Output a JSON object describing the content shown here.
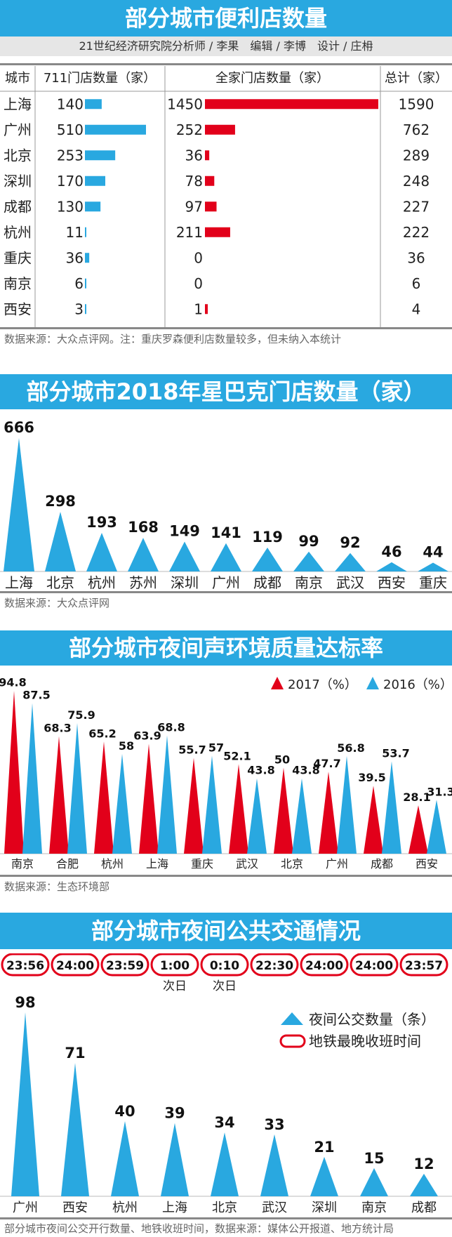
{
  "colors": {
    "blue": "#29a8e0",
    "red": "#e2001a",
    "banner_text": "#ffffff"
  },
  "section1": {
    "title": "部分城市便利店数量",
    "byline": "21世纪经济研究院分析师 / 李果　编辑 / 李博　设计 / 庄枏",
    "headers": {
      "city": "城市",
      "c711": "711门店数量（家）",
      "family": "全家门店数量（家）",
      "total": "总计（家）"
    },
    "source": "数据来源：大众点评网。注：重庆罗森便利店数量较多，但未纳入本统计",
    "chart_data": {
      "type": "table",
      "title": "部分城市便利店数量",
      "columns": [
        "城市",
        "711门店数量（家）",
        "全家门店数量（家）",
        "总计（家）"
      ],
      "rows": [
        {
          "city": "上海",
          "s711": 140,
          "family": 1450,
          "total": 1590
        },
        {
          "city": "广州",
          "s711": 510,
          "family": 252,
          "total": 762
        },
        {
          "city": "北京",
          "s711": 253,
          "family": 36,
          "total": 289
        },
        {
          "city": "深圳",
          "s711": 170,
          "family": 78,
          "total": 248
        },
        {
          "city": "成都",
          "s711": 130,
          "family": 97,
          "total": 227
        },
        {
          "city": "杭州",
          "s711": 11,
          "family": 211,
          "total": 222
        },
        {
          "city": "重庆",
          "s711": 36,
          "family": 0,
          "total": 36
        },
        {
          "city": "南京",
          "s711": 6,
          "family": 0,
          "total": 6
        },
        {
          "city": "西安",
          "s711": 3,
          "family": 1,
          "total": 4
        }
      ],
      "s711_max": 510,
      "family_max": 1450
    }
  },
  "section2": {
    "title": "部分城市2018年星巴克门店数量（家）",
    "source": "数据来源：大众点评网",
    "chart_data": {
      "type": "bar",
      "title": "部分城市2018年星巴克门店数量（家）",
      "categories": [
        "上海",
        "北京",
        "杭州",
        "苏州",
        "深圳",
        "广州",
        "成都",
        "南京",
        "武汉",
        "西安",
        "重庆"
      ],
      "values": [
        666,
        298,
        193,
        168,
        149,
        141,
        119,
        99,
        92,
        46,
        44
      ],
      "ylim": [
        0,
        666
      ]
    }
  },
  "section3": {
    "title": "部分城市夜间声环境质量达标率",
    "source": "数据来源：生态环境部",
    "chart_data": {
      "type": "bar",
      "title": "部分城市夜间声环境质量达标率",
      "categories": [
        "南京",
        "合肥",
        "杭州",
        "上海",
        "重庆",
        "武汉",
        "北京",
        "广州",
        "成都",
        "西安"
      ],
      "series": [
        {
          "name": "2017（%）",
          "values": [
            94.8,
            68.3,
            65.2,
            63.9,
            55.7,
            52.1,
            50,
            47.7,
            39.5,
            28.1
          ]
        },
        {
          "name": "2016（%）",
          "values": [
            87.5,
            75.9,
            58,
            68.8,
            57,
            43.8,
            43.8,
            56.8,
            53.7,
            31.3
          ]
        }
      ],
      "legend": "top-right",
      "ylim": [
        0,
        100
      ]
    }
  },
  "section4": {
    "title": "部分城市夜间公共交通情况",
    "legend_bus": "夜间公交数量（条）",
    "legend_metro": "地铁最晚收班时间",
    "source": "部分城市夜间公交开行数量、地铁收班时间，数据来源：媒体公开报道、地方统计局",
    "chart_data": {
      "type": "bar",
      "title": "部分城市夜间公共交通情况",
      "categories": [
        "广州",
        "西安",
        "杭州",
        "上海",
        "北京",
        "武汉",
        "深圳",
        "南京",
        "成都"
      ],
      "values": [
        98,
        71,
        40,
        39,
        34,
        33,
        21,
        15,
        12
      ],
      "metro_last_times": [
        "23:56",
        "24:00",
        "23:59",
        "1:00",
        "0:10",
        "22:30",
        "24:00",
        "24:00",
        "23:57"
      ],
      "metro_notes": [
        "",
        "",
        "",
        "次日",
        "次日",
        "",
        "",
        "",
        ""
      ],
      "ylim": [
        0,
        98
      ]
    }
  }
}
